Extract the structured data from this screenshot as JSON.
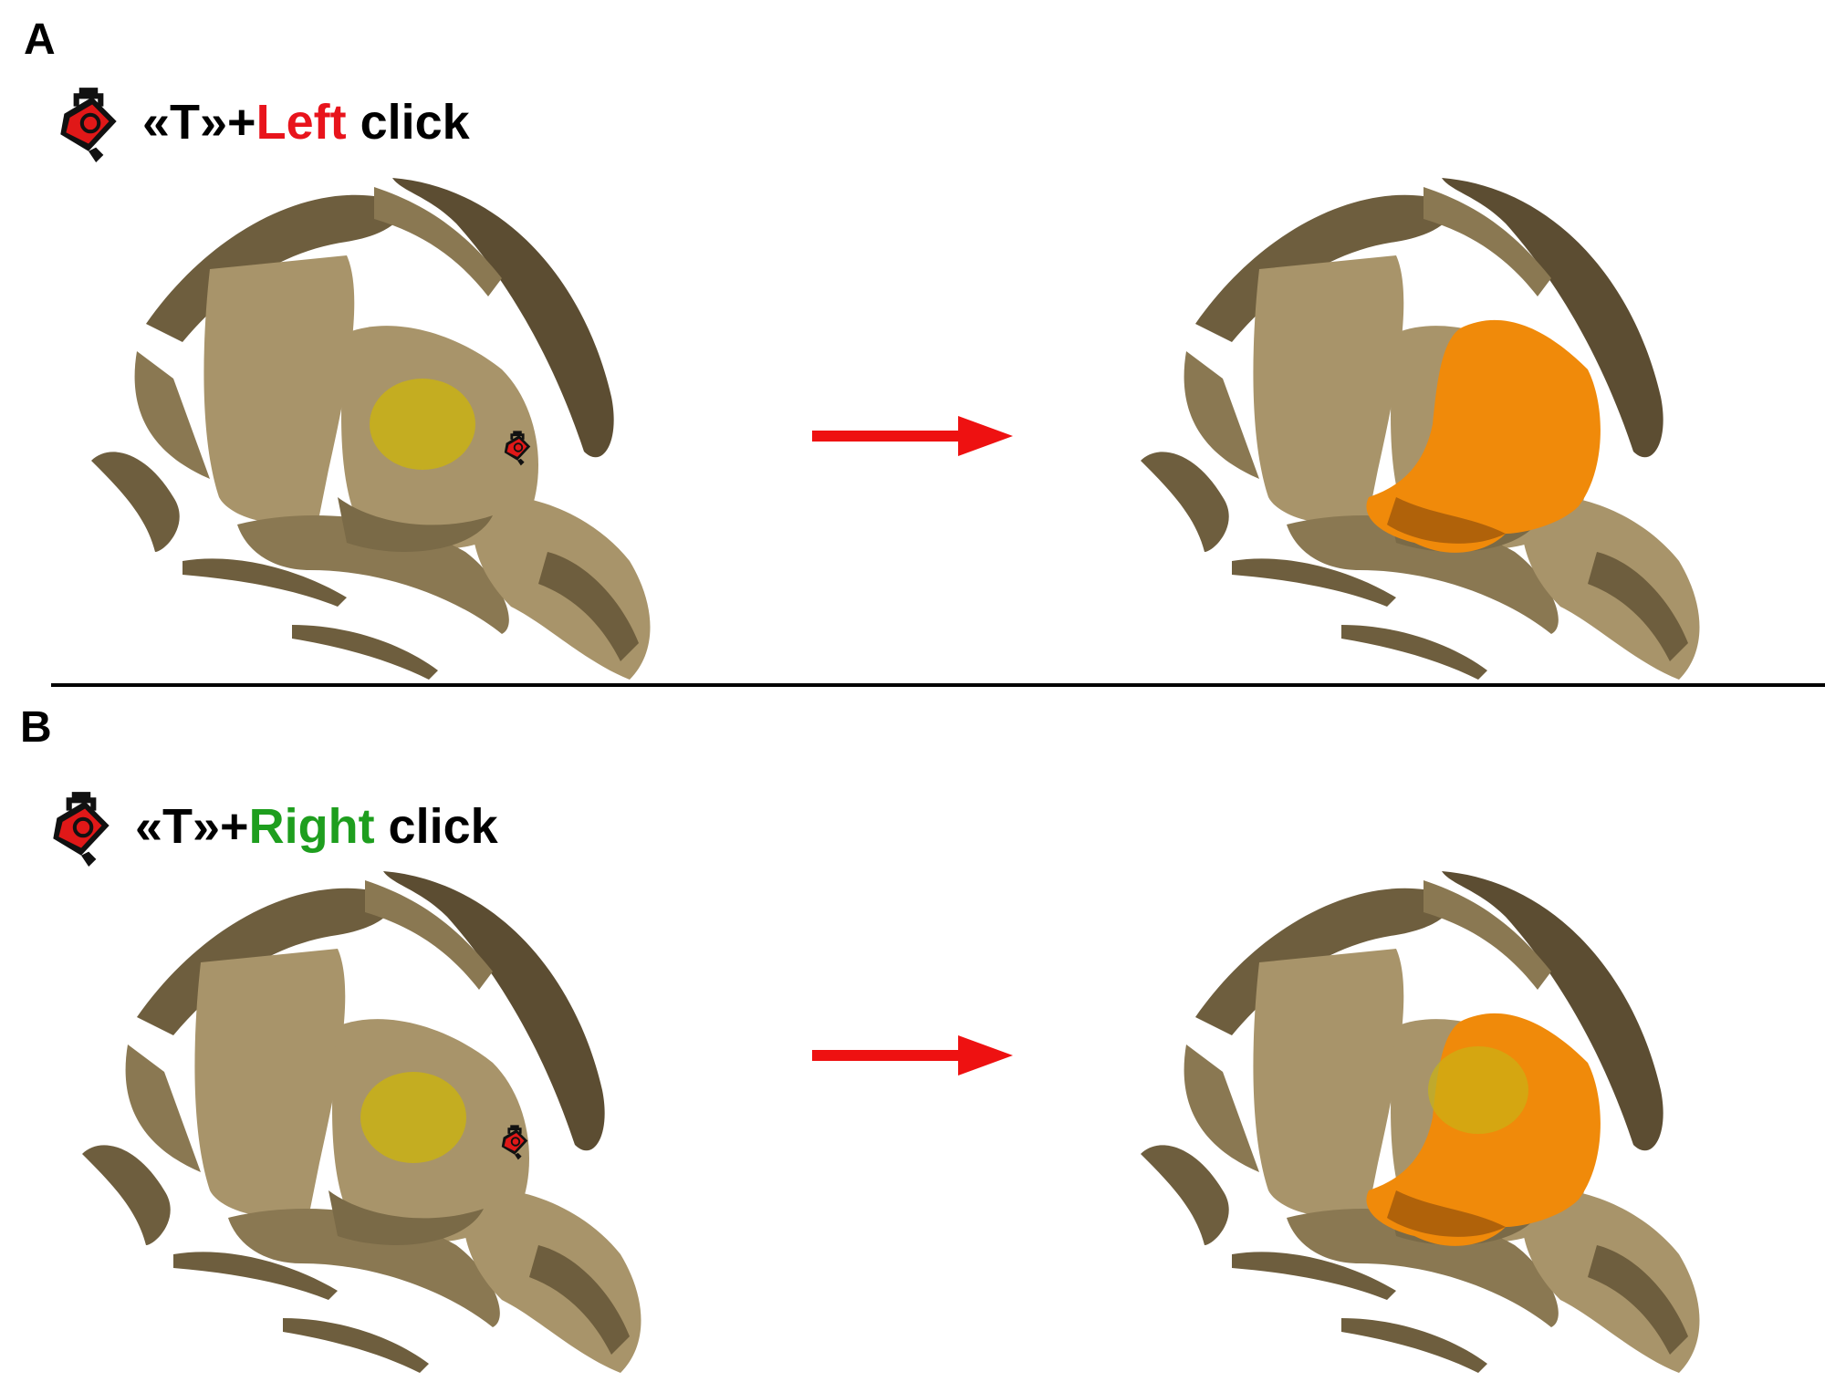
{
  "panel_a": {
    "letter": "A",
    "instruction": {
      "prefix": "«T»+",
      "button": "Left",
      "suffix": " click",
      "button_color": "#e8141c"
    }
  },
  "panel_b": {
    "letter": "B",
    "instruction": {
      "prefix": "«T»+",
      "button": "Right",
      "suffix": " click",
      "button_color": "#1e9e1e"
    }
  },
  "icons": {
    "tool": "paint-bucket-icon",
    "arrow": "right-arrow"
  },
  "colors": {
    "bone": "#a8946a",
    "bone_dark": "#6e5e3e",
    "seed": "#c9b214",
    "segmented": "#f08a0a",
    "arrow": "#ee1111"
  }
}
